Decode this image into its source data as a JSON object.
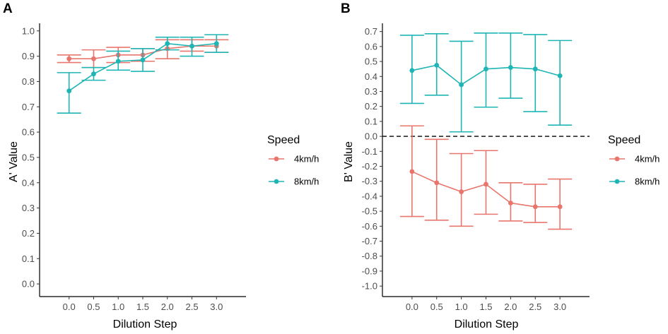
{
  "chart_data": [
    {
      "panel": "A",
      "type": "line",
      "title": "",
      "xlabel": "Dilution Step",
      "ylabel": "A' Value",
      "x": [
        0.0,
        0.5,
        1.0,
        1.5,
        2.0,
        2.5,
        3.0
      ],
      "x_tick_labels": [
        "0.0",
        "0.5",
        "1.0",
        "1.5",
        "2.0",
        "2.5",
        "3.0"
      ],
      "y_ticks": [
        0.0,
        0.1,
        0.2,
        0.3,
        0.4,
        0.5,
        0.6,
        0.7,
        0.8,
        0.9,
        1.0
      ],
      "y_tick_labels": [
        "0.0",
        "0.1",
        "0.2",
        "0.3",
        "0.4",
        "0.5",
        "0.6",
        "0.7",
        "0.8",
        "0.9",
        "1.0"
      ],
      "xlim": [
        -0.6,
        3.6
      ],
      "ylim": [
        -0.05,
        1.03
      ],
      "grid": false,
      "series": [
        {
          "name": "4km/h",
          "color": "#E8766D",
          "values": [
            0.89,
            0.89,
            0.905,
            0.905,
            0.93,
            0.94,
            0.94
          ],
          "lower": [
            0.875,
            0.855,
            0.875,
            0.88,
            0.89,
            0.92,
            0.915
          ],
          "upper": [
            0.905,
            0.925,
            0.935,
            0.93,
            0.965,
            0.965,
            0.965
          ]
        },
        {
          "name": "8km/h",
          "color": "#1FB5B5",
          "values": [
            0.763,
            0.83,
            0.88,
            0.885,
            0.95,
            0.94,
            0.95
          ],
          "lower": [
            0.675,
            0.805,
            0.845,
            0.84,
            0.925,
            0.9,
            0.915
          ],
          "upper": [
            0.835,
            0.855,
            0.92,
            0.93,
            0.975,
            0.975,
            0.985
          ]
        }
      ],
      "legend": {
        "title": "Speed",
        "placement": "right"
      }
    },
    {
      "panel": "B",
      "type": "line",
      "title": "",
      "xlabel": "Dilution Step",
      "ylabel": "B' Value",
      "x": [
        0.0,
        0.5,
        1.0,
        1.5,
        2.0,
        2.5,
        3.0
      ],
      "x_tick_labels": [
        "0.0",
        "0.5",
        "1.0",
        "1.5",
        "2.0",
        "2.5",
        "3.0"
      ],
      "y_ticks": [
        -1.0,
        -0.9,
        -0.8,
        -0.7,
        -0.6,
        -0.5,
        -0.4,
        -0.3,
        -0.2,
        -0.1,
        0.0,
        0.1,
        0.2,
        0.3,
        0.4,
        0.5,
        0.6,
        0.7
      ],
      "y_tick_labels": [
        "-1.0",
        "-0.9",
        "-0.8",
        "-0.7",
        "-0.6",
        "-0.5",
        "-0.4",
        "-0.3",
        "-0.2",
        "-0.1",
        "0.0",
        "0.1",
        "0.2",
        "0.3",
        "0.4",
        "0.5",
        "0.6",
        "0.7"
      ],
      "xlim": [
        -0.6,
        3.6
      ],
      "ylim": [
        -1.07,
        0.755
      ],
      "grid": false,
      "reference_line": {
        "y": 0.0,
        "style": "dashed"
      },
      "series": [
        {
          "name": "4km/h",
          "color": "#E8766D",
          "values": [
            -0.235,
            -0.31,
            -0.37,
            -0.32,
            -0.445,
            -0.47,
            -0.47
          ],
          "lower": [
            -0.535,
            -0.56,
            -0.6,
            -0.52,
            -0.565,
            -0.575,
            -0.62
          ],
          "upper": [
            0.07,
            -0.02,
            -0.115,
            -0.095,
            -0.31,
            -0.32,
            -0.285
          ]
        },
        {
          "name": "8km/h",
          "color": "#1FB5B5",
          "values": [
            0.44,
            0.475,
            0.345,
            0.45,
            0.46,
            0.45,
            0.405
          ],
          "lower": [
            0.22,
            0.275,
            0.03,
            0.195,
            0.255,
            0.165,
            0.075
          ],
          "upper": [
            0.675,
            0.685,
            0.635,
            0.69,
            0.69,
            0.68,
            0.64
          ]
        }
      ],
      "legend": {
        "title": "Speed",
        "placement": "right"
      }
    }
  ]
}
